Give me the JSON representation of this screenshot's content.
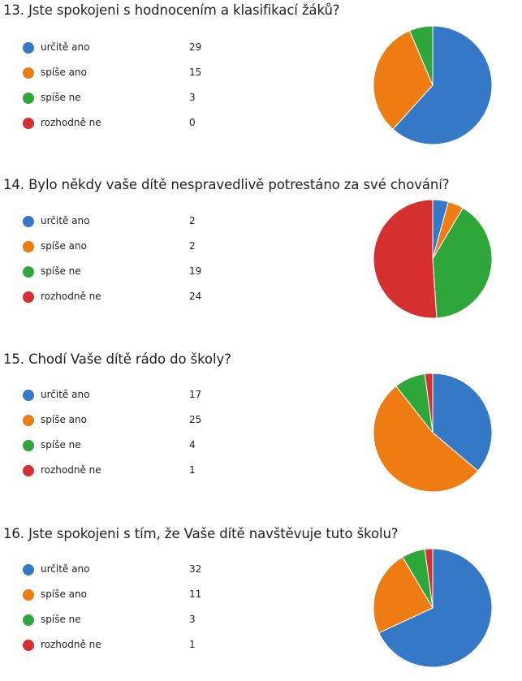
{
  "colors": {
    "urcite_ano": "#3478c6",
    "spise_ano": "#ee7c12",
    "spise_ne": "#2fa63a",
    "rozhodne_ne": "#d62f2f",
    "slice_border": "#ffffff"
  },
  "chart_data": [
    {
      "type": "pie",
      "title": "13.  Jste spokojeni s hodnocením a klasifikací žáků?",
      "categories": [
        "určitě ano",
        "spíše ano",
        "spíše ne",
        "rozhodně ne"
      ],
      "values": [
        29,
        15,
        3,
        0
      ],
      "count_labels": [
        "29",
        "15",
        "3",
        "0"
      ],
      "legend": "left"
    },
    {
      "type": "pie",
      "title": "14.  Bylo někdy vaše dítě nespravedlivě potrestáno za své chování?",
      "categories": [
        "určitě ano",
        "spíše ano",
        "spíše ne",
        "rozhodně ne"
      ],
      "values": [
        2,
        2,
        19,
        24
      ],
      "count_labels": [
        "2",
        "2",
        "19",
        "24"
      ],
      "legend": "left"
    },
    {
      "type": "pie",
      "title": "15.  Chodí Vaše dítě rádo do školy?",
      "categories": [
        "určitě ano",
        "spíše ano",
        "spíše ne",
        "rozhodně ne"
      ],
      "values": [
        17,
        25,
        4,
        1
      ],
      "count_labels": [
        "17",
        "25",
        "4",
        "1"
      ],
      "legend": "left"
    },
    {
      "type": "pie",
      "title": "16.  Jste spokojeni s tím, že Vaše dítě navštěvuje tuto školu?",
      "categories": [
        "určitě ano",
        "spíše ano",
        "spíše ne",
        "rozhodně ne"
      ],
      "values": [
        32,
        11,
        3,
        1
      ],
      "count_labels": [
        "32",
        "11",
        "3",
        "1"
      ],
      "legend": "left"
    }
  ]
}
